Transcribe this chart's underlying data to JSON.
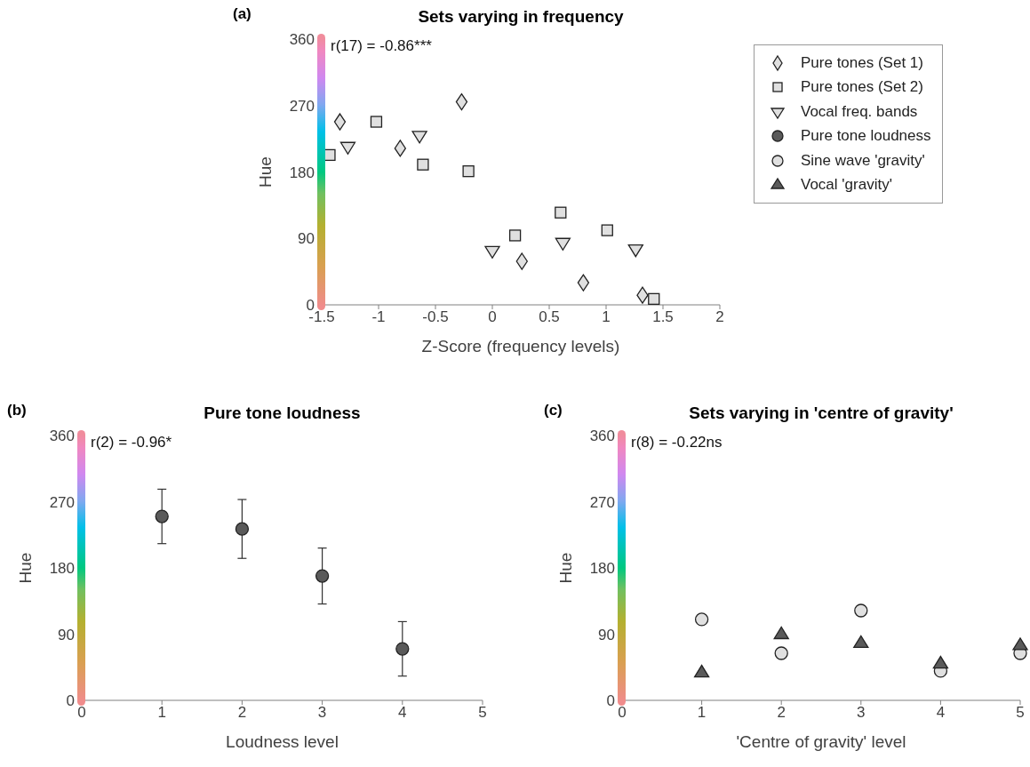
{
  "chart_data": [
    {
      "type": "scatter",
      "title": "Sets varying in frequency",
      "xlabel": "Z-Score (frequency levels)",
      "ylabel": "Hue",
      "annotations": [
        "(a)",
        "r(17) = -0.86***"
      ],
      "xlim": [
        -1.5,
        2
      ],
      "xticks": [
        -1.5,
        -1,
        -0.5,
        0,
        0.5,
        1,
        1.5,
        2
      ],
      "ylim": [
        0,
        360
      ],
      "yticks": [
        0,
        90,
        180,
        270,
        360
      ],
      "legend": "right",
      "series": [
        {
          "name": "Pure tones (Set 1)",
          "color": "#e0e0e0",
          "marker": "diamond",
          "x": [
            -1.34,
            -0.81,
            -0.27,
            0.26,
            0.8,
            1.32
          ],
          "values": [
            248,
            212,
            275,
            59,
            30,
            13
          ]
        },
        {
          "name": "Pure tones (Set 2)",
          "color": "#e0e0e0",
          "marker": "square",
          "x": [
            -1.43,
            -1.02,
            -0.61,
            -0.21,
            0.2,
            0.6,
            1.01,
            1.42
          ],
          "values": [
            203,
            248,
            190,
            181,
            94,
            125,
            101,
            8
          ]
        },
        {
          "name": "Vocal freq. bands",
          "color": "#e0e0e0",
          "marker": "triangle-down",
          "x": [
            -1.27,
            -0.64,
            0,
            0.62,
            1.26
          ],
          "values": [
            214,
            229,
            73,
            84,
            75
          ]
        }
      ]
    },
    {
      "type": "scatter",
      "title": "Pure tone loudness",
      "xlabel": "Loudness level",
      "ylabel": "Hue",
      "legend": "top right",
      "annotations": [
        "(b)",
        "r(2) = -0.96*"
      ],
      "xlim": [
        0,
        5
      ],
      "xticks": [
        0,
        1,
        2,
        3,
        4,
        5
      ],
      "ylim": [
        0,
        360
      ],
      "yticks": [
        0,
        90,
        180,
        270,
        360
      ],
      "series": [
        {
          "name": "Pure tone loudness",
          "color": "#5a5a5a",
          "marker": "circle",
          "x": [
            1,
            2,
            3,
            4
          ],
          "values": [
            250,
            233,
            169,
            70
          ],
          "errors": [
            37,
            40,
            38,
            37
          ]
        }
      ]
    },
    {
      "type": "scatter",
      "title": "Sets varying in 'centre of gravity'",
      "xlabel": "'Centre of gravity' level",
      "ylabel": "Hue",
      "legend": "top right",
      "annotations": [
        "(c)",
        "r(8) = -0.22ns"
      ],
      "xlim": [
        0,
        5
      ],
      "xticks": [
        0,
        1,
        2,
        3,
        4,
        5
      ],
      "ylim": [
        0,
        360
      ],
      "yticks": [
        0,
        90,
        180,
        270,
        360
      ],
      "series": [
        {
          "name": "Sine wave 'gravity'",
          "color": "#e0e0e0",
          "marker": "circle",
          "x": [
            1,
            2,
            3,
            4,
            5
          ],
          "values": [
            110,
            64,
            122,
            40,
            64
          ]
        },
        {
          "name": "Vocal 'gravity'",
          "color": "#5a5a5a",
          "marker": "triangle",
          "x": [
            1,
            2,
            3,
            4,
            5
          ],
          "values": [
            38,
            90,
            78,
            50,
            75
          ]
        }
      ]
    }
  ]
}
